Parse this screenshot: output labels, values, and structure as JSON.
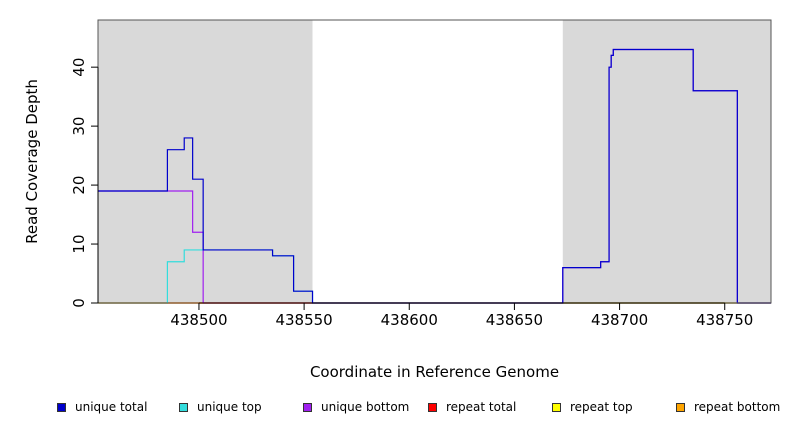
{
  "chart_data": {
    "type": "line",
    "title": "",
    "xlabel": "Coordinate in Reference Genome",
    "ylabel": "Read Coverage Depth",
    "xlim": [
      438452,
      438772
    ],
    "ylim": [
      0,
      48
    ],
    "x_ticks": [
      438500,
      438550,
      438600,
      438650,
      438700,
      438750
    ],
    "y_ticks": [
      0,
      10,
      20,
      30,
      40
    ],
    "grid": false,
    "legend_position": "bottom",
    "shaded_regions": [
      {
        "x_start": 438452,
        "x_end": 438554,
        "color": "#d9d9d9"
      },
      {
        "x_start": 438673,
        "x_end": 438772,
        "color": "#d9d9d9"
      }
    ],
    "series": [
      {
        "name": "unique total",
        "color": "#0000cc",
        "x": [
          438452,
          438485,
          438485,
          438493,
          438493,
          438497,
          438497,
          438502,
          438502,
          438535,
          438535,
          438545,
          438545,
          438554,
          438554,
          438673,
          438673,
          438691,
          438691,
          438695,
          438695,
          438696,
          438696,
          438697,
          438697,
          438701,
          438701,
          438735,
          438735,
          438756,
          438756,
          438772
        ],
        "y": [
          19,
          19,
          26,
          26,
          28,
          28,
          21,
          21,
          9,
          9,
          8,
          8,
          2,
          2,
          0,
          0,
          6,
          6,
          7,
          7,
          40,
          40,
          42,
          42,
          43,
          43,
          43,
          43,
          36,
          36,
          0,
          0
        ]
      },
      {
        "name": "unique top",
        "color": "#33dddd",
        "x": [
          438452,
          438485,
          438485,
          438493,
          438493,
          438502,
          438502,
          438535,
          438535,
          438545,
          438545,
          438554,
          438554,
          438772
        ],
        "y": [
          0,
          0,
          7,
          7,
          9,
          9,
          9,
          9,
          8,
          8,
          2,
          2,
          0,
          0
        ]
      },
      {
        "name": "unique bottom",
        "color": "#a020f0",
        "x": [
          438452,
          438490,
          438490,
          438497,
          438497,
          438502,
          438502,
          438673,
          438673,
          438691,
          438691,
          438695,
          438695,
          438696,
          438696,
          438697,
          438697,
          438735,
          438735,
          438756,
          438756,
          438772
        ],
        "y": [
          19,
          19,
          19,
          19,
          12,
          12,
          0,
          0,
          6,
          6,
          7,
          7,
          40,
          40,
          42,
          42,
          43,
          43,
          36,
          36,
          0,
          0
        ]
      },
      {
        "name": "repeat total",
        "color": "#ff0000",
        "x": [
          438452,
          438772
        ],
        "y": [
          0,
          0
        ]
      },
      {
        "name": "repeat top",
        "color": "#ffff00",
        "x": [
          438452,
          438772
        ],
        "y": [
          0,
          0
        ]
      },
      {
        "name": "repeat bottom",
        "color": "#ffa500",
        "x": [
          438452,
          438772
        ],
        "y": [
          0,
          0
        ]
      }
    ]
  }
}
